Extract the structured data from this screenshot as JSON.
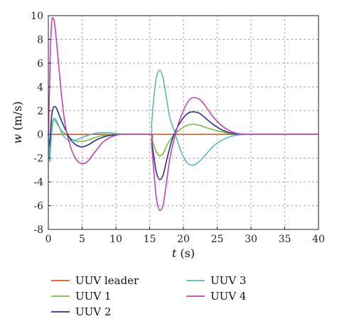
{
  "chart_data": {
    "type": "line",
    "xlabel": {
      "var": "t",
      "unit": " (s)"
    },
    "ylabel": {
      "var": "w",
      "unit": " (m/s)"
    },
    "xlim": [
      0,
      40
    ],
    "ylim": [
      -8,
      10
    ],
    "xticks": [
      0,
      5,
      10,
      15,
      20,
      25,
      30,
      35,
      40
    ],
    "yticks": [
      -8,
      -6,
      -4,
      -2,
      0,
      2,
      4,
      6,
      8,
      10
    ],
    "grid": true,
    "legend_position": "bottom",
    "series": [
      {
        "name": "UUV leader",
        "color": "#e0561f",
        "points": [
          [
            0,
            0
          ],
          [
            40,
            0
          ]
        ]
      },
      {
        "name": "UUV 1",
        "color": "#6fbf3a",
        "points": [
          [
            0,
            0
          ],
          [
            0.2,
            -1.6
          ],
          [
            0.4,
            0.3
          ],
          [
            0.7,
            1.2
          ],
          [
            1.0,
            1.15
          ],
          [
            1.5,
            0.7
          ],
          [
            2.0,
            0.3
          ],
          [
            2.5,
            0.05
          ],
          [
            3.0,
            -0.2
          ],
          [
            3.5,
            -0.4
          ],
          [
            4.0,
            -0.55
          ],
          [
            4.5,
            -0.6
          ],
          [
            5.0,
            -0.6
          ],
          [
            6.0,
            -0.45
          ],
          [
            7.0,
            -0.25
          ],
          [
            8.0,
            -0.1
          ],
          [
            9.0,
            -0.05
          ],
          [
            10.0,
            0
          ],
          [
            12,
            0
          ],
          [
            15.0,
            0
          ],
          [
            15.3,
            -0.3
          ],
          [
            15.6,
            -0.9
          ],
          [
            16.0,
            -1.5
          ],
          [
            16.5,
            -1.8
          ],
          [
            17.0,
            -1.6
          ],
          [
            17.5,
            -1.0
          ],
          [
            18.0,
            -0.5
          ],
          [
            18.7,
            0
          ],
          [
            19.5,
            0.4
          ],
          [
            20.5,
            0.75
          ],
          [
            21.5,
            0.85
          ],
          [
            22.5,
            0.75
          ],
          [
            23.5,
            0.55
          ],
          [
            25.0,
            0.3
          ],
          [
            26.5,
            0.12
          ],
          [
            28.0,
            0.03
          ],
          [
            29.5,
            0
          ],
          [
            40,
            0
          ]
        ]
      },
      {
        "name": "UUV 2",
        "color": "#2b2f86",
        "points": [
          [
            0,
            0
          ],
          [
            0.2,
            -1.0
          ],
          [
            0.4,
            1.0
          ],
          [
            0.6,
            2.0
          ],
          [
            0.9,
            2.35
          ],
          [
            1.2,
            2.2
          ],
          [
            1.7,
            1.5
          ],
          [
            2.2,
            0.8
          ],
          [
            2.7,
            0.2
          ],
          [
            3.2,
            -0.35
          ],
          [
            3.7,
            -0.7
          ],
          [
            4.3,
            -0.95
          ],
          [
            5.0,
            -1.05
          ],
          [
            6.0,
            -0.85
          ],
          [
            7.0,
            -0.5
          ],
          [
            8.0,
            -0.25
          ],
          [
            9.0,
            -0.1
          ],
          [
            10.0,
            -0.03
          ],
          [
            11.0,
            0
          ],
          [
            15.0,
            0
          ],
          [
            15.3,
            -0.6
          ],
          [
            15.6,
            -1.8
          ],
          [
            16.0,
            -3.2
          ],
          [
            16.5,
            -3.8
          ],
          [
            17.0,
            -3.4
          ],
          [
            17.5,
            -2.2
          ],
          [
            18.0,
            -1.1
          ],
          [
            18.6,
            0
          ],
          [
            19.3,
            0.8
          ],
          [
            20.3,
            1.6
          ],
          [
            21.3,
            1.9
          ],
          [
            22.3,
            1.8
          ],
          [
            23.3,
            1.35
          ],
          [
            24.5,
            0.8
          ],
          [
            26.0,
            0.3
          ],
          [
            27.5,
            0.08
          ],
          [
            29.0,
            0.01
          ],
          [
            30.0,
            0
          ],
          [
            40,
            0
          ]
        ]
      },
      {
        "name": "UUV 3",
        "color": "#5ab7c0",
        "points": [
          [
            0,
            0
          ],
          [
            0.2,
            -2.3
          ],
          [
            0.4,
            -0.5
          ],
          [
            0.7,
            1.2
          ],
          [
            1.0,
            1.3
          ],
          [
            1.5,
            0.8
          ],
          [
            2.0,
            0.1
          ],
          [
            2.5,
            -0.3
          ],
          [
            3.0,
            -0.5
          ],
          [
            3.5,
            -0.6
          ],
          [
            4.0,
            -0.5
          ],
          [
            5.0,
            -0.25
          ],
          [
            6.0,
            -0.05
          ],
          [
            7.0,
            0.1
          ],
          [
            8.0,
            0.15
          ],
          [
            9.0,
            0.15
          ],
          [
            10.0,
            0.08
          ],
          [
            11.0,
            0.02
          ],
          [
            12.0,
            0
          ],
          [
            15.0,
            0
          ],
          [
            15.3,
            1.0
          ],
          [
            15.6,
            3.0
          ],
          [
            16.0,
            4.8
          ],
          [
            16.5,
            5.4
          ],
          [
            17.0,
            4.7
          ],
          [
            17.5,
            3.0
          ],
          [
            18.0,
            1.4
          ],
          [
            18.8,
            0
          ],
          [
            19.5,
            -1.2
          ],
          [
            20.3,
            -2.2
          ],
          [
            21.3,
            -2.6
          ],
          [
            22.3,
            -2.3
          ],
          [
            23.3,
            -1.7
          ],
          [
            24.5,
            -0.95
          ],
          [
            26.0,
            -0.4
          ],
          [
            27.5,
            -0.1
          ],
          [
            29.0,
            -0.01
          ],
          [
            30.0,
            0
          ],
          [
            40,
            0
          ]
        ]
      },
      {
        "name": "UUV 4",
        "color": "#c742b6",
        "points": [
          [
            0,
            0
          ],
          [
            0.1,
            2.0
          ],
          [
            0.3,
            7.0
          ],
          [
            0.5,
            9.5
          ],
          [
            0.7,
            9.8
          ],
          [
            1.0,
            9.0
          ],
          [
            1.5,
            6.0
          ],
          [
            2.0,
            3.0
          ],
          [
            2.5,
            0.8
          ],
          [
            3.0,
            -0.5
          ],
          [
            3.5,
            -1.4
          ],
          [
            4.0,
            -2.0
          ],
          [
            4.5,
            -2.35
          ],
          [
            5.0,
            -2.45
          ],
          [
            5.5,
            -2.4
          ],
          [
            6.0,
            -2.15
          ],
          [
            7.0,
            -1.4
          ],
          [
            8.0,
            -0.7
          ],
          [
            9.0,
            -0.3
          ],
          [
            10.0,
            -0.08
          ],
          [
            11.0,
            0
          ],
          [
            15.0,
            0
          ],
          [
            15.3,
            -1.0
          ],
          [
            15.6,
            -3.0
          ],
          [
            16.0,
            -5.4
          ],
          [
            16.5,
            -6.4
          ],
          [
            17.0,
            -5.9
          ],
          [
            17.5,
            -4.0
          ],
          [
            18.0,
            -2.0
          ],
          [
            18.8,
            0
          ],
          [
            19.5,
            1.3
          ],
          [
            20.5,
            2.6
          ],
          [
            21.5,
            3.1
          ],
          [
            22.5,
            2.9
          ],
          [
            23.5,
            2.2
          ],
          [
            24.5,
            1.4
          ],
          [
            26.0,
            0.6
          ],
          [
            27.5,
            0.15
          ],
          [
            29.0,
            0.02
          ],
          [
            30.0,
            0
          ],
          [
            40,
            0
          ]
        ]
      }
    ]
  }
}
